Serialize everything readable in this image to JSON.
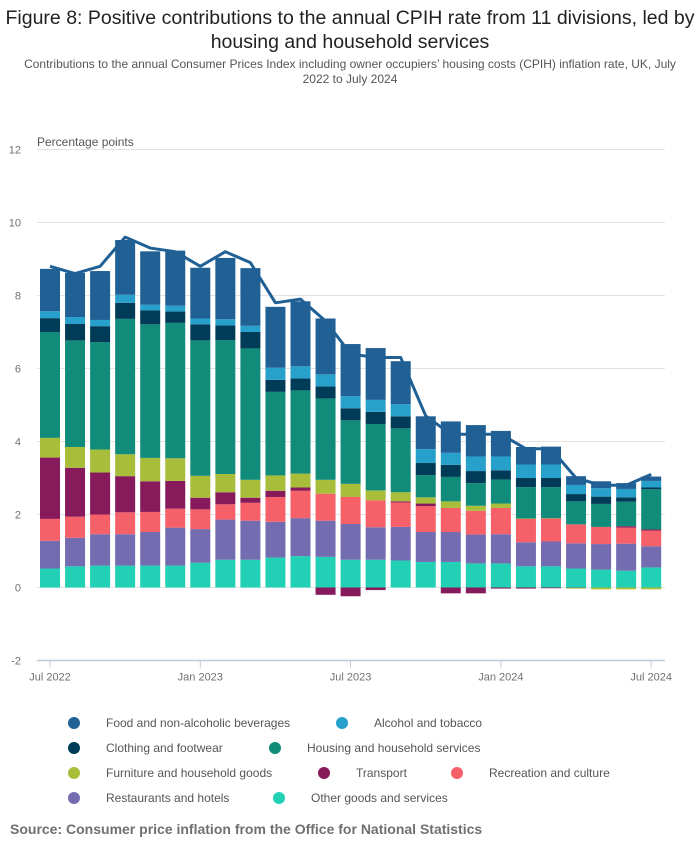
{
  "title": "Figure 8: Positive contributions to the annual CPIH rate from 11 divisions, led by housing and household services",
  "subtitle": "Contributions to the annual Consumer Prices Index including owner occupiers’ housing costs (CPIH) inflation rate, UK, July 2022 to July 2024",
  "source": "Source: Consumer price inflation from the Office for National Statistics",
  "chart_data": {
    "type": "bar",
    "stacked": true,
    "title": "Figure 8: Positive contributions to the annual CPIH rate from 11 divisions, led by housing and household services",
    "ylabel": "Percentage points",
    "xlabel": "",
    "ylim": [
      -2,
      12
    ],
    "yticks": [
      12,
      10,
      8,
      6,
      4,
      2,
      0,
      -2
    ],
    "grid": true,
    "legend_position": "bottom",
    "categories": [
      "Jul 2022",
      "Aug 2022",
      "Sep 2022",
      "Oct 2022",
      "Nov 2022",
      "Dec 2022",
      "Jan 2023",
      "Feb 2023",
      "Mar 2023",
      "Apr 2023",
      "May 2023",
      "Jun 2023",
      "Jul 2023",
      "Aug 2023",
      "Sep 2023",
      "Oct 2023",
      "Nov 2023",
      "Dec 2023",
      "Jan 2024",
      "Feb 2024",
      "Mar 2024",
      "Apr 2024",
      "May 2024",
      "Jun 2024",
      "Jul 2024"
    ],
    "xtick_labels": [
      {
        "index": 0,
        "label": "Jul 2022"
      },
      {
        "index": 6,
        "label": "Jan 2023"
      },
      {
        "index": 12,
        "label": "Jul 2023"
      },
      {
        "index": 18,
        "label": "Jan 2024"
      },
      {
        "index": 24,
        "label": "Jul 2024"
      }
    ],
    "series": [
      {
        "name": "Other goods and services",
        "color": "#22d0b6",
        "values": [
          0.52,
          0.58,
          0.6,
          0.6,
          0.6,
          0.6,
          0.68,
          0.76,
          0.76,
          0.82,
          0.86,
          0.84,
          0.76,
          0.76,
          0.74,
          0.7,
          0.7,
          0.66,
          0.66,
          0.58,
          0.58,
          0.52,
          0.49,
          0.46,
          0.55
        ]
      },
      {
        "name": "Restaurants and hotels",
        "color": "#746cb1",
        "values": [
          0.76,
          0.78,
          0.86,
          0.86,
          0.92,
          1.04,
          0.92,
          1.1,
          1.07,
          0.98,
          1.04,
          0.99,
          0.98,
          0.89,
          0.92,
          0.82,
          0.82,
          0.79,
          0.8,
          0.66,
          0.68,
          0.69,
          0.7,
          0.74,
          0.58
        ]
      },
      {
        "name": "Recreation and culture",
        "color": "#f66068",
        "values": [
          0.6,
          0.58,
          0.54,
          0.6,
          0.55,
          0.52,
          0.54,
          0.42,
          0.49,
          0.68,
          0.75,
          0.74,
          0.74,
          0.74,
          0.67,
          0.71,
          0.66,
          0.65,
          0.72,
          0.64,
          0.63,
          0.52,
          0.47,
          0.44,
          0.43
        ]
      },
      {
        "name": "Transport",
        "color": "#871a5b",
        "values": [
          1.68,
          1.34,
          1.15,
          0.99,
          0.84,
          0.76,
          0.32,
          0.33,
          0.14,
          0.17,
          0.09,
          -0.2,
          -0.24,
          -0.07,
          0.03,
          0.07,
          -0.16,
          -0.16,
          -0.03,
          -0.03,
          -0.02,
          -0.01,
          0.0,
          0.04,
          0.03
        ]
      },
      {
        "name": "Furniture and household goods",
        "color": "#a8bd3a",
        "values": [
          0.54,
          0.57,
          0.63,
          0.6,
          0.64,
          0.62,
          0.6,
          0.5,
          0.49,
          0.42,
          0.38,
          0.38,
          0.36,
          0.27,
          0.25,
          0.17,
          0.18,
          0.14,
          0.12,
          0.01,
          0.01,
          -0.02,
          -0.05,
          -0.05,
          -0.05
        ]
      },
      {
        "name": "Housing and household services",
        "color": "#118c7b",
        "values": [
          2.9,
          2.92,
          2.94,
          3.71,
          3.66,
          3.71,
          3.71,
          3.67,
          3.6,
          2.29,
          2.28,
          2.23,
          1.74,
          1.82,
          1.75,
          0.61,
          0.67,
          0.62,
          0.66,
          0.86,
          0.85,
          0.63,
          0.63,
          0.67,
          1.1
        ]
      },
      {
        "name": "Clothing and footwear",
        "color": "#003c57",
        "values": [
          0.38,
          0.45,
          0.44,
          0.44,
          0.38,
          0.31,
          0.44,
          0.4,
          0.45,
          0.33,
          0.33,
          0.33,
          0.33,
          0.33,
          0.33,
          0.33,
          0.33,
          0.33,
          0.25,
          0.25,
          0.25,
          0.2,
          0.2,
          0.12,
          0.05
        ]
      },
      {
        "name": "Alcohol and tobacco",
        "color": "#27a0cc",
        "values": [
          0.19,
          0.19,
          0.17,
          0.22,
          0.16,
          0.16,
          0.16,
          0.17,
          0.17,
          0.33,
          0.33,
          0.33,
          0.33,
          0.33,
          0.33,
          0.38,
          0.33,
          0.4,
          0.38,
          0.37,
          0.37,
          0.25,
          0.23,
          0.23,
          0.18
        ]
      },
      {
        "name": "Food and non-alcoholic beverages",
        "color": "#206095",
        "values": [
          1.16,
          1.21,
          1.34,
          1.5,
          1.46,
          1.51,
          1.39,
          1.68,
          1.58,
          1.67,
          1.78,
          1.53,
          1.43,
          1.42,
          1.18,
          0.9,
          0.86,
          0.86,
          0.7,
          0.48,
          0.49,
          0.24,
          0.19,
          0.16,
          0.12
        ]
      }
    ],
    "line": {
      "name": "CPIH (annual rate)",
      "color": "#206095",
      "values": [
        8.8,
        8.6,
        8.8,
        9.6,
        9.3,
        9.2,
        8.8,
        9.2,
        8.9,
        7.8,
        7.9,
        7.3,
        6.4,
        6.3,
        6.3,
        4.7,
        4.2,
        4.2,
        4.2,
        3.8,
        3.8,
        3.0,
        2.8,
        2.8,
        3.1
      ]
    }
  }
}
